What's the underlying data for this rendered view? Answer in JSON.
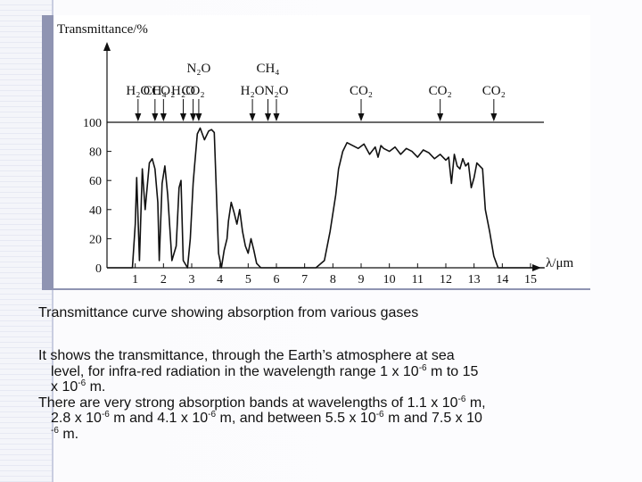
{
  "figure": {
    "y_axis_label": "Transmittance/%",
    "x_axis_label": "λ/μm"
  },
  "chart_data": {
    "type": "line",
    "title": "",
    "xlabel": "λ/μm",
    "ylabel": "Transmittance/%",
    "xlim": [
      0,
      15.5
    ],
    "ylim": [
      0,
      100
    ],
    "x_ticks": [
      "1",
      "2",
      "3",
      "4",
      "5",
      "6",
      "7",
      "8",
      "9",
      "10",
      "11",
      "12",
      "13",
      "14",
      "15"
    ],
    "y_ticks": [
      "0",
      "20",
      "40",
      "60",
      "80",
      "100"
    ],
    "reference_line": 100,
    "series": [
      {
        "x": [
          0.0,
          0.9,
          1.0,
          1.05,
          1.15,
          1.25,
          1.35,
          1.5,
          1.6,
          1.7,
          1.8,
          1.85,
          1.95,
          2.05,
          2.15,
          2.3,
          2.45,
          2.55,
          2.62,
          2.7,
          2.85,
          2.95,
          3.05,
          3.1,
          3.2,
          3.3,
          3.45,
          3.6,
          3.7,
          3.8,
          3.95,
          4.05,
          4.15,
          4.25,
          4.3,
          4.4,
          4.5,
          4.6,
          4.7,
          4.8,
          4.9,
          5.0,
          5.1,
          5.2,
          5.3,
          5.45,
          5.5,
          6.0,
          7.4,
          7.7,
          7.9,
          8.1,
          8.2,
          8.35,
          8.5,
          8.7,
          8.9,
          9.1,
          9.3,
          9.5,
          9.6,
          9.7,
          9.8,
          10.0,
          10.2,
          10.4,
          10.6,
          10.8,
          11.0,
          11.2,
          11.4,
          11.6,
          11.8,
          12.0,
          12.1,
          12.2,
          12.3,
          12.4,
          12.5,
          12.6,
          12.7,
          12.8,
          12.9,
          13.0,
          13.1,
          13.2,
          13.3,
          13.4,
          13.55,
          13.7,
          13.85,
          14.0,
          14.1,
          14.3,
          15.5
        ],
        "y": [
          0,
          0,
          30,
          62,
          5,
          68,
          40,
          72,
          75,
          68,
          45,
          5,
          58,
          70,
          50,
          5,
          15,
          55,
          60,
          5,
          0,
          20,
          58,
          70,
          92,
          96,
          88,
          94,
          95,
          93,
          10,
          0,
          12,
          20,
          32,
          45,
          38,
          30,
          40,
          25,
          15,
          10,
          20,
          12,
          3,
          0,
          0,
          0,
          0,
          5,
          25,
          50,
          68,
          80,
          86,
          84,
          82,
          85,
          78,
          83,
          76,
          84,
          82,
          80,
          83,
          78,
          82,
          80,
          76,
          81,
          79,
          75,
          78,
          74,
          76,
          58,
          78,
          70,
          68,
          75,
          70,
          72,
          55,
          62,
          72,
          70,
          68,
          40,
          25,
          8,
          0,
          0,
          0,
          0,
          0
        ]
      }
    ],
    "absorbers": [
      {
        "label": "H₂O",
        "x": 1.1
      },
      {
        "label": "CH₄",
        "x": 1.7
      },
      {
        "label": "CO₂",
        "x": 2.0
      },
      {
        "label": "H₂O",
        "x": 2.7
      },
      {
        "label": "CO₂",
        "x": 3.05
      },
      {
        "label": "N₂O",
        "x": 3.25
      },
      {
        "label": "H₂O",
        "x": 5.15
      },
      {
        "label": "CH₄",
        "x": 5.7
      },
      {
        "label": "N₂O",
        "x": 6.0
      },
      {
        "label": "CO₂",
        "x": 9.0
      },
      {
        "label": "CO₂",
        "x": 11.8
      },
      {
        "label": "CO₂",
        "x": 13.7
      }
    ]
  },
  "text": {
    "caption": "Transmittance curve showing absorption from various gases",
    "p1": {
      "a": "It shows the transmittance, through the Earth’s atmosphere at sea",
      "b": "level, for infra-red radiation in the wavelength range 1 x 10",
      "b_sup": "-6",
      "c": " m to 15",
      "d": "x 10",
      "d_sup": "-6",
      "e": " m."
    },
    "p2": {
      "a": "There are very strong absorption bands at wavelengths of 1.1 x 10",
      "a_sup": "-6",
      "a2": " m,",
      "b": "2.8 x 10",
      "b_sup": "-6",
      "b2": " m and 4.1 x 10",
      "b_sup2": "-6",
      "b3": " m, and between 5.5 x 10",
      "b_sup3": "-6",
      "b4": " m and 7.5 x 10",
      "c_sup": "-6",
      "c2": " m."
    }
  }
}
